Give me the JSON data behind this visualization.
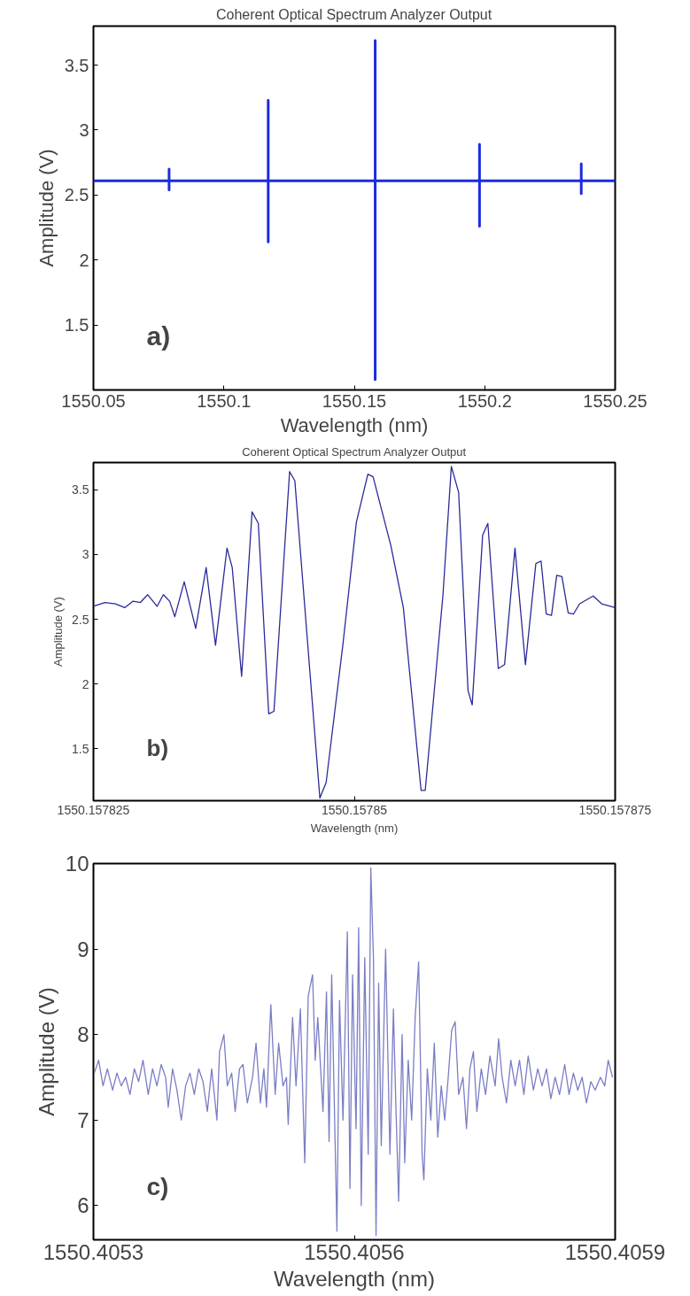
{
  "chart_data": [
    {
      "type": "line",
      "title": "Coherent Optical Spectrum Analyzer Output",
      "xlabel": "Wavelength (nm)",
      "ylabel": "Amplitude (V)",
      "annotations": [
        "a)"
      ],
      "xlim": [
        1550.05,
        1550.25
      ],
      "xticks": [
        1550.05,
        1550.1,
        1550.15,
        1550.2,
        1550.25
      ],
      "ylim": [
        1.0,
        3.8
      ],
      "yticks": [
        1.5,
        2,
        2.5,
        3,
        3.5
      ],
      "series": [
        {
          "color": "#1a2be0",
          "x": [
            1550.05,
            1550.079,
            1550.079,
            1550.079,
            1550.079,
            1550.117,
            1550.117,
            1550.117,
            1550.117,
            1550.158,
            1550.158,
            1550.158,
            1550.158,
            1550.198,
            1550.198,
            1550.198,
            1550.198,
            1550.237,
            1550.237,
            1550.237,
            1550.237,
            1550.25
          ],
          "values": [
            2.61,
            2.61,
            2.7,
            2.54,
            2.61,
            2.61,
            3.23,
            2.14,
            2.61,
            2.61,
            3.69,
            1.08,
            2.61,
            2.61,
            2.89,
            2.26,
            2.61,
            2.61,
            2.74,
            2.51,
            2.61,
            2.61
          ]
        }
      ]
    },
    {
      "type": "line",
      "title": "Coherent Optical Spectrum Analyzer Output",
      "xlabel": "Wavelength (nm)",
      "ylabel": "Amplitude (V)",
      "annotations": [
        "b)"
      ],
      "xlim": [
        1550.157825,
        1550.157875
      ],
      "xticks": [
        1550.157825,
        1550.15785,
        1550.157875
      ],
      "ylim": [
        1.1,
        3.71
      ],
      "yticks": [
        1.5,
        2,
        2.5,
        3,
        3.5
      ],
      "series": [
        {
          "color": "#2a2a9a",
          "x": [
            1550.157825,
            1550.1578261,
            1550.1578271,
            1550.157828,
            1550.1578288,
            1550.1578295,
            1550.1578302,
            1550.1578311,
            1550.1578317,
            1550.1578323,
            1550.1578328,
            1550.1578337,
            1550.1578348,
            1550.1578358,
            1550.1578367,
            1550.1578378,
            1550.1578383,
            1550.1578392,
            1550.1578402,
            1550.1578408,
            1550.1578418,
            1550.1578423,
            1550.1578438,
            1550.1578443,
            1550.1578467,
            1550.1578473,
            1550.1578489,
            1550.1578502,
            1550.1578513,
            1550.1578518,
            1550.1578535,
            1550.1578547,
            1550.1578564,
            1550.1578568,
            1550.1578585,
            1550.1578593,
            1550.15786,
            1550.1578609,
            1550.1578613,
            1550.1578623,
            1550.1578628,
            1550.1578638,
            1550.1578644,
            1550.1578654,
            1550.1578664,
            1550.1578674,
            1550.1578679,
            1550.1578684,
            1550.1578689,
            1550.1578694,
            1550.1578699,
            1550.1578705,
            1550.157871,
            1550.1578716,
            1550.1578729,
            1550.1578737,
            1550.157875
          ],
          "values": [
            2.6,
            2.63,
            2.62,
            2.59,
            2.64,
            2.63,
            2.69,
            2.6,
            2.69,
            2.64,
            2.52,
            2.79,
            2.43,
            2.9,
            2.3,
            3.05,
            2.9,
            2.06,
            3.33,
            3.24,
            1.77,
            1.79,
            3.64,
            3.57,
            1.12,
            1.24,
            2.3,
            3.25,
            3.62,
            3.6,
            3.07,
            2.59,
            1.18,
            1.18,
            2.69,
            3.68,
            3.48,
            1.95,
            1.84,
            3.15,
            3.24,
            2.12,
            2.15,
            3.05,
            2.15,
            2.93,
            2.95,
            2.54,
            2.53,
            2.84,
            2.83,
            2.55,
            2.54,
            2.62,
            2.68,
            2.62,
            2.59
          ]
        }
      ]
    },
    {
      "type": "line",
      "xlabel": "Wavelength (nm)",
      "ylabel": "Amplitude (V)",
      "annotations": [
        "c)"
      ],
      "xlim": [
        1550.4053,
        1550.4059
      ],
      "xticks": [
        1550.4053,
        1550.4056,
        1550.4059
      ],
      "ylim": [
        5.6,
        10
      ],
      "yticks": [
        6,
        7,
        8,
        9,
        10
      ],
      "series": [
        {
          "color": "#7a7ec4",
          "x": [
            1550.405301,
            1550.405306,
            1550.405311,
            1550.405316,
            1550.405322,
            1550.405327,
            1550.405332,
            1550.405337,
            1550.405342,
            1550.405347,
            1550.405352,
            1550.405357,
            1550.405363,
            1550.405368,
            1550.405373,
            1550.405378,
            1550.405383,
            1550.405386,
            1550.405391,
            1550.405396,
            1550.405401,
            1550.405406,
            1550.405411,
            1550.405416,
            1550.405421,
            1550.405426,
            1550.405431,
            1550.405436,
            1550.405442,
            1550.405445,
            1550.40545,
            1550.405454,
            1550.405459,
            1550.405463,
            1550.405468,
            1550.405472,
            1550.405477,
            1550.405483,
            1550.405487,
            1550.405492,
            1550.405496,
            1550.405499,
            1550.405504,
            1550.405509,
            1550.405513,
            1550.405518,
            1550.405522,
            1550.405524,
            1550.405529,
            1550.405533,
            1550.405538,
            1550.405543,
            1550.405547,
            1550.405552,
            1550.405555,
            1550.405558,
            1550.405564,
            1550.405568,
            1550.405571,
            1550.405574,
            1550.405577,
            1550.40558,
            1550.405583,
            1550.405587,
            1550.405592,
            1550.405595,
            1550.405598,
            1550.405602,
            1550.405605,
            1550.405608,
            1550.405612,
            1550.405616,
            1550.405619,
            1550.405622,
            1550.405625,
            1550.405628,
            1550.405631,
            1550.405636,
            1550.405641,
            1550.405645,
            1550.405648,
            1550.405651,
            1550.405655,
            1550.405658,
            1550.405662,
            1550.405666,
            1550.40567,
            1550.405674,
            1550.405678,
            1550.40568,
            1550.405684,
            1550.405688,
            1550.405692,
            1550.405696,
            1550.4057,
            1550.405704,
            1550.405708,
            1550.405712,
            1550.405716,
            1550.40572,
            1550.405725,
            1550.405729,
            1550.405733,
            1550.405737,
            1550.405741,
            1550.405746,
            1550.405751,
            1550.405756,
            1550.405762,
            1550.405766,
            1550.40577,
            1550.405775,
            1550.40578,
            1550.405785,
            1550.40579,
            1550.405795,
            1550.4058,
            1550.405806,
            1550.405811,
            1550.405816,
            1550.405821,
            1550.405826,
            1550.405831,
            1550.405836,
            1550.405842,
            1550.405847,
            1550.405852,
            1550.405857,
            1550.405862,
            1550.405867,
            1550.405872,
            1550.405877,
            1550.405883,
            1550.405888,
            1550.405892,
            1550.405897
          ],
          "values": [
            7.55,
            7.7,
            7.4,
            7.6,
            7.35,
            7.55,
            7.4,
            7.5,
            7.3,
            7.6,
            7.45,
            7.7,
            7.3,
            7.6,
            7.4,
            7.65,
            7.5,
            7.15,
            7.6,
            7.35,
            7.0,
            7.4,
            7.55,
            7.3,
            7.6,
            7.45,
            7.1,
            7.6,
            7.0,
            7.8,
            8.0,
            7.4,
            7.55,
            7.1,
            7.6,
            7.65,
            7.2,
            7.5,
            7.9,
            7.2,
            7.6,
            7.15,
            8.35,
            7.3,
            7.9,
            7.4,
            7.5,
            6.95,
            8.2,
            7.4,
            8.3,
            6.5,
            8.45,
            8.7,
            7.7,
            8.2,
            7.1,
            8.5,
            6.75,
            8.7,
            7.2,
            5.7,
            8.4,
            7.0,
            9.2,
            6.2,
            8.7,
            6.9,
            9.25,
            6.0,
            8.9,
            6.6,
            9.95,
            8.9,
            5.65,
            8.6,
            6.7,
            9.0,
            6.6,
            8.3,
            7.1,
            6.05,
            8.0,
            6.5,
            7.7,
            7.0,
            8.2,
            8.85,
            6.6,
            6.3,
            7.6,
            7.0,
            7.9,
            6.8,
            7.4,
            7.0,
            7.5,
            8.05,
            8.15,
            7.3,
            7.5,
            6.9,
            7.6,
            7.8,
            7.1,
            7.6,
            7.3,
            7.75,
            7.4,
            7.95,
            7.5,
            7.2,
            7.7,
            7.4,
            7.7,
            7.3,
            7.75,
            7.35,
            7.6,
            7.4,
            7.6,
            7.25,
            7.5,
            7.3,
            7.65,
            7.3,
            7.55,
            7.35,
            7.5,
            7.2,
            7.45,
            7.35,
            7.5,
            7.4,
            7.7,
            7.5
          ]
        }
      ]
    }
  ]
}
